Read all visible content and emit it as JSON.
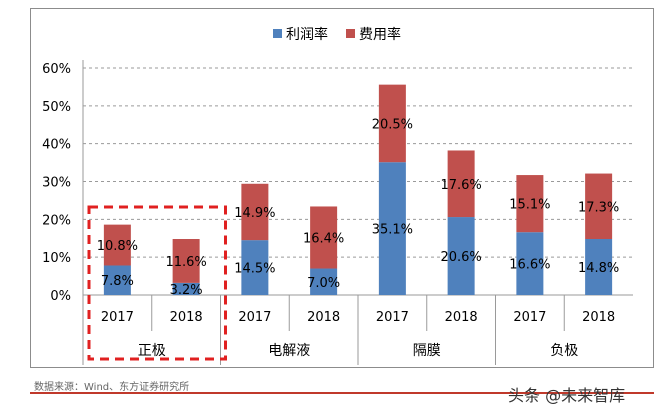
{
  "chart_data": {
    "type": "bar",
    "stacked": true,
    "groups": [
      "正极",
      "电解液",
      "隔膜",
      "负极"
    ],
    "years": [
      "2017",
      "2018"
    ],
    "categories": [
      "正极 2017",
      "正极 2018",
      "电解液 2017",
      "电解液 2018",
      "隔膜 2017",
      "隔膜 2018",
      "负极 2017",
      "负极 2018"
    ],
    "series": [
      {
        "name": "利润率",
        "color": "#4f81bd",
        "values": [
          7.8,
          3.2,
          14.5,
          7.0,
          35.1,
          20.6,
          16.6,
          14.8
        ]
      },
      {
        "name": "费用率",
        "color": "#c0504d",
        "values": [
          10.8,
          11.6,
          14.9,
          16.4,
          20.5,
          17.6,
          15.1,
          17.3
        ]
      }
    ],
    "yticks": [
      "0%",
      "10%",
      "20%",
      "30%",
      "40%",
      "50%",
      "60%"
    ],
    "ylim": [
      0,
      60
    ],
    "highlight_group": "正极",
    "legend_position": "top"
  },
  "footer": {
    "source": "数据来源：Wind、东方证券研究所",
    "watermark": "头条 @未来智库"
  }
}
